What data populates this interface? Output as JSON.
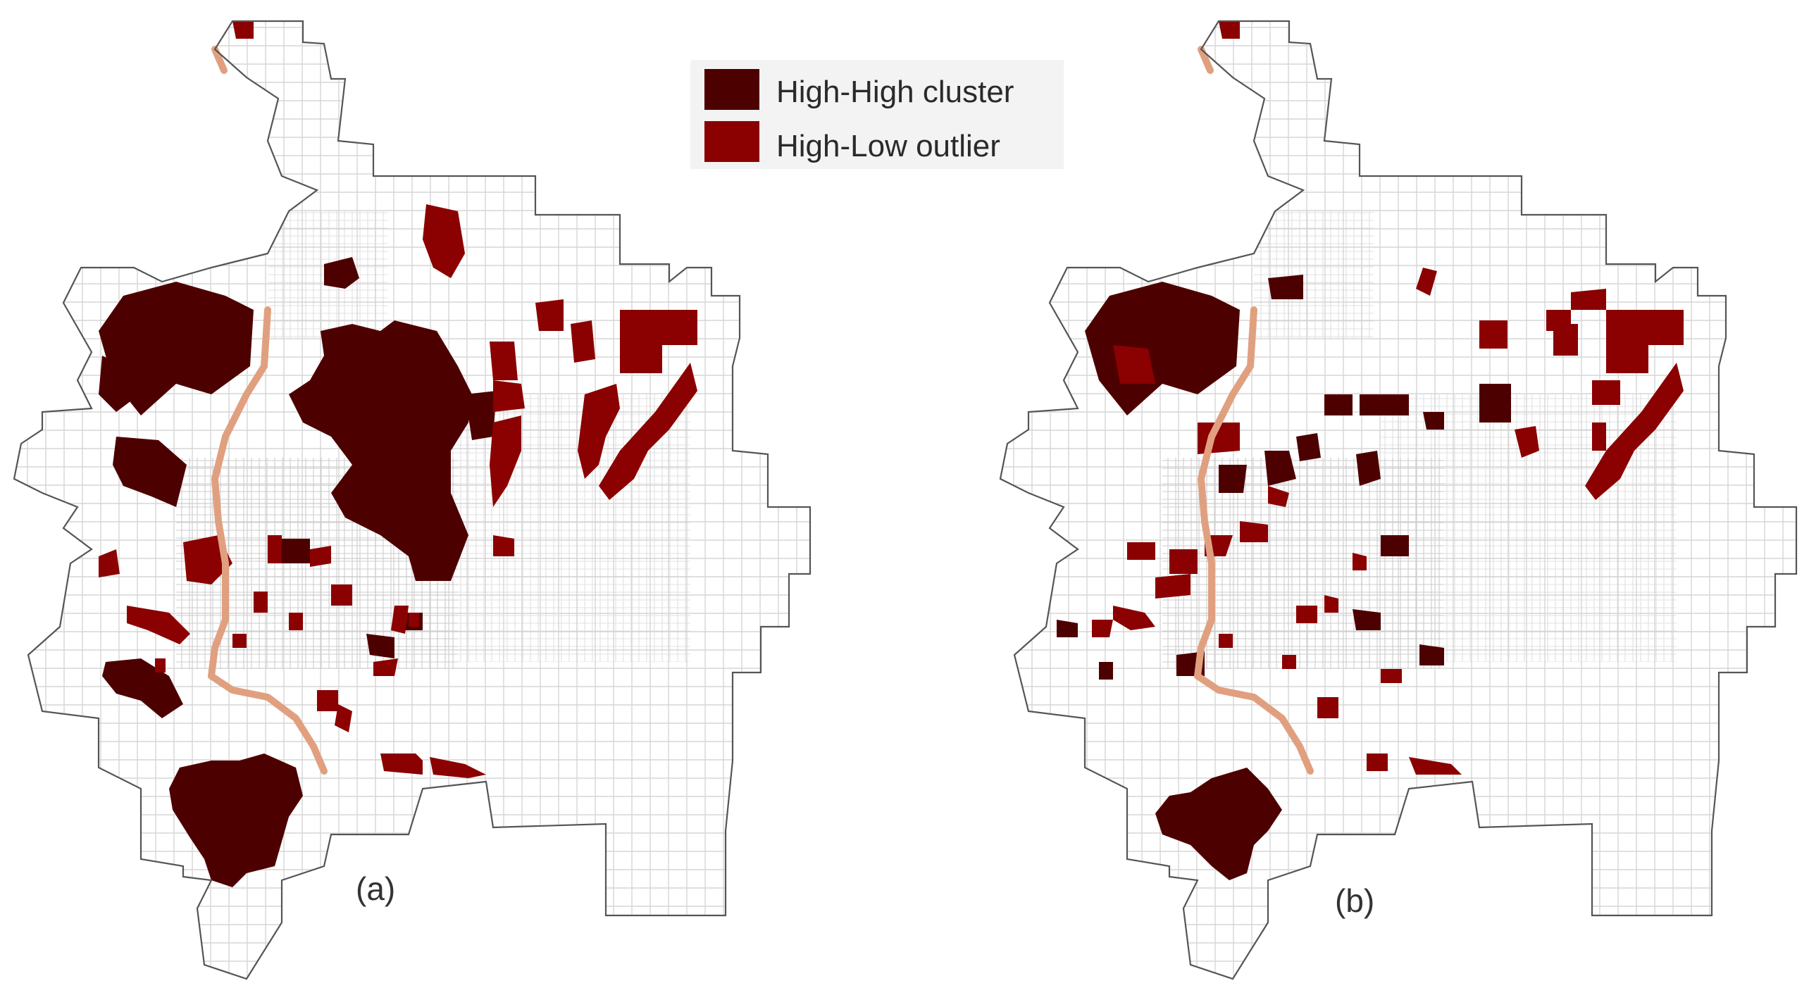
{
  "legend": {
    "items": [
      {
        "label": "High-High cluster",
        "color": "#4d0000"
      },
      {
        "label": "High-Low outlier",
        "color": "#8b0000"
      }
    ]
  },
  "panels": [
    {
      "id": "a",
      "label": "(a)"
    },
    {
      "id": "b",
      "label": "(b)"
    }
  ],
  "colors": {
    "high_high": "#4d0000",
    "high_low": "#8b0000",
    "highway": "#e0a080",
    "road": "#cfcfcf",
    "boundary": "#555555"
  }
}
